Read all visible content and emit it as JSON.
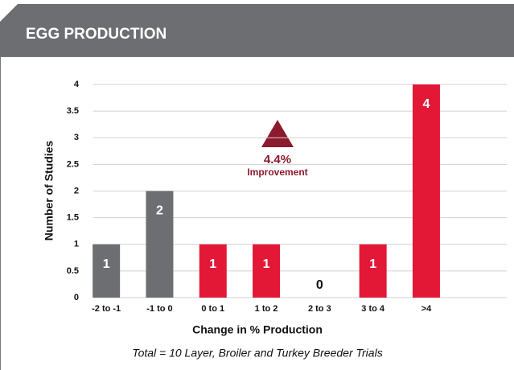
{
  "chart_data": {
    "type": "bar",
    "title": "EGG PRODUCTION",
    "categories": [
      "-2 to -1",
      "-1 to 0",
      "0 to 1",
      "1 to 2",
      "2 to 3",
      "3 to 4",
      ">4"
    ],
    "values": [
      1,
      2,
      1,
      1,
      0,
      1,
      4
    ],
    "colors": [
      "#6d6e71",
      "#6d6e71",
      "#e31837",
      "#e31837",
      "#e31837",
      "#e31837",
      "#e31837"
    ],
    "ylim": [
      0,
      4
    ],
    "yticks": [
      0,
      0.5,
      1,
      1.5,
      2,
      2.5,
      3,
      3.5,
      4
    ],
    "grid": true,
    "y_label": "Number of Studies",
    "x_label": "Change in % Production",
    "note": "Total = 10 Layer, Broiler and Turkey Breeder Trials",
    "annotations": [
      "4.4%",
      "Improvement"
    ]
  }
}
